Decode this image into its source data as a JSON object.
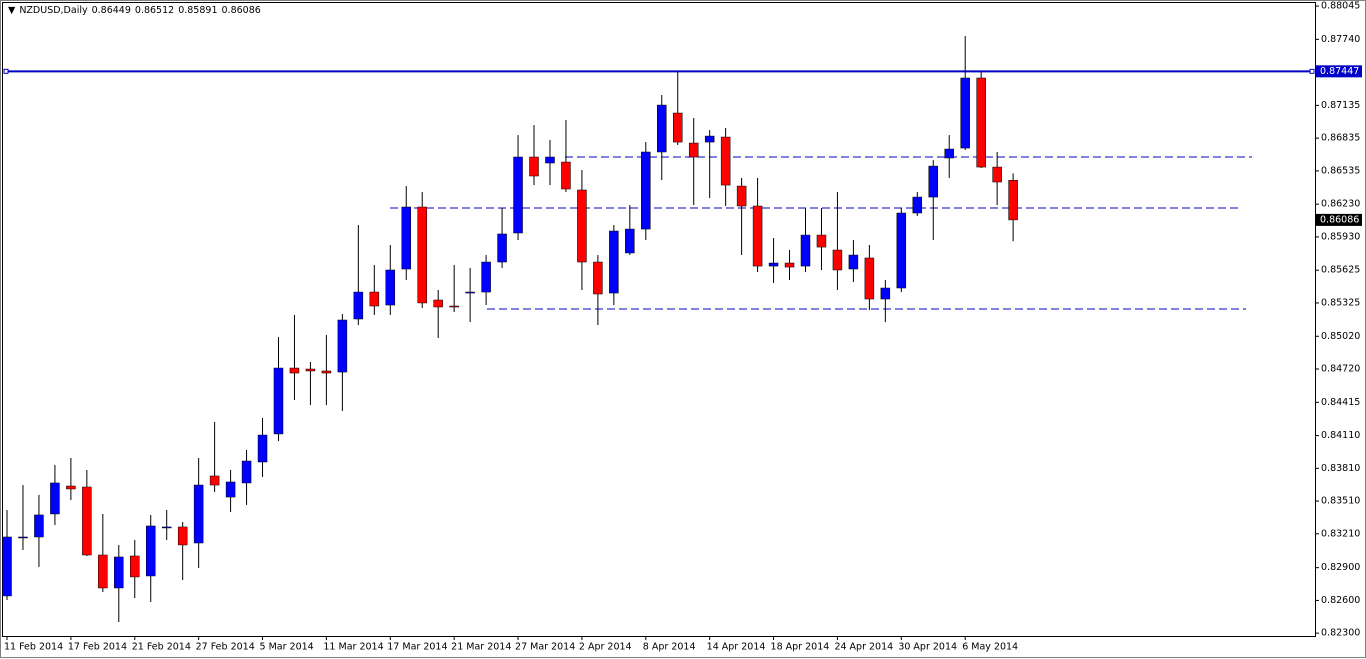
{
  "chart_data": {
    "type": "candlestick",
    "title": "NZDUSD,Daily",
    "header_values": [
      0.86449,
      0.86512,
      0.85891,
      0.86086
    ],
    "categories": [
      "11 Feb 2014",
      null,
      null,
      null,
      "17 Feb 2014",
      null,
      null,
      null,
      "21 Feb 2014",
      null,
      null,
      null,
      "27 Feb 2014",
      null,
      null,
      null,
      "5 Mar 2014",
      null,
      null,
      null,
      "11 Mar 2014",
      null,
      null,
      null,
      "17 Mar 2014",
      null,
      null,
      null,
      "21 Mar 2014",
      null,
      null,
      null,
      "27 Mar 2014",
      null,
      null,
      null,
      "2 Apr 2014",
      null,
      null,
      null,
      "8 Apr 2014",
      null,
      null,
      null,
      "14 Apr 2014",
      null,
      null,
      null,
      "18 Apr 2014",
      null,
      null,
      null,
      "24 Apr 2014",
      null,
      null,
      null,
      "30 Apr 2014",
      null,
      null,
      null,
      "6 May 2014",
      null,
      null,
      null
    ],
    "open": [
      0.82641,
      0.83181,
      0.83181,
      0.83392,
      0.83648,
      0.83639,
      0.83016,
      0.82714,
      0.83007,
      0.82824,
      0.83273,
      0.83273,
      0.83126,
      0.8374,
      0.83547,
      0.83676,
      0.83868,
      0.84125,
      0.84729,
      0.8472,
      0.84702,
      0.84692,
      0.85178,
      0.85425,
      0.85306,
      0.85636,
      0.86204,
      0.85352,
      0.85297,
      0.85416,
      0.85425,
      0.857,
      0.85966,
      0.86662,
      0.86607,
      0.86616,
      0.8636,
      0.857,
      0.85416,
      0.85783,
      0.86002,
      0.86708,
      0.87065,
      0.8679,
      0.86799,
      0.86845,
      0.86396,
      0.86213,
      0.85663,
      0.85691,
      0.85663,
      0.85947,
      0.8581,
      0.85636,
      0.85737,
      0.85361,
      0.85462,
      0.86149,
      0.86295,
      0.86653,
      0.86744,
      0.87386,
      0.8657,
      0.86449
    ],
    "high": [
      0.83428,
      0.83657,
      0.83566,
      0.83841,
      0.83905,
      0.83795,
      0.83392,
      0.83108,
      0.83154,
      0.83383,
      0.83428,
      0.83318,
      0.83905,
      0.84234,
      0.83795,
      0.83978,
      0.84271,
      0.85013,
      0.85215,
      0.84784,
      0.85031,
      0.85224,
      0.86039,
      0.85673,
      0.85856,
      0.86396,
      0.86341,
      0.85444,
      0.85673,
      0.85645,
      0.85764,
      0.86195,
      0.86863,
      0.86955,
      0.86818,
      0.87001,
      0.86543,
      0.85764,
      0.86039,
      0.86222,
      0.86799,
      0.8723,
      0.8744,
      0.87019,
      0.86909,
      0.86928,
      0.8647,
      0.8647,
      0.8592,
      0.8581,
      0.86195,
      0.86195,
      0.86341,
      0.85902,
      0.85856,
      0.85535,
      0.86195,
      0.86341,
      0.86634,
      0.86863,
      0.8777,
      0.8744,
      0.86708,
      0.86512
    ],
    "low": [
      0.82604,
      0.83062,
      0.82906,
      0.83291,
      0.8352,
      0.83007,
      0.82677,
      0.82402,
      0.82622,
      0.82586,
      0.83154,
      0.82787,
      0.82897,
      0.83593,
      0.8341,
      0.83474,
      0.83731,
      0.8406,
      0.84436,
      0.8439,
      0.8439,
      0.84335,
      0.85123,
      0.85215,
      0.85215,
      0.85535,
      0.85279,
      0.85004,
      0.85242,
      0.8515,
      0.85306,
      0.85645,
      0.85902,
      0.86405,
      0.86405,
      0.86341,
      0.85444,
      0.85123,
      0.85306,
      0.85764,
      0.85902,
      0.86451,
      0.86772,
      0.86222,
      0.86286,
      0.86213,
      0.85764,
      0.85608,
      0.85508,
      0.85535,
      0.85608,
      0.85627,
      0.85444,
      0.85517,
      0.8526,
      0.8515,
      0.85425,
      0.86121,
      0.85902,
      0.8647,
      0.86726,
      0.86561,
      0.86222,
      0.85891
    ],
    "close": [
      0.83181,
      0.83181,
      0.83383,
      0.83676,
      0.83621,
      0.83016,
      0.82714,
      0.82998,
      0.82815,
      0.83282,
      0.83273,
      0.83108,
      0.83657,
      0.83657,
      0.83685,
      0.83877,
      0.84115,
      0.84729,
      0.84683,
      0.84702,
      0.84683,
      0.85169,
      0.85425,
      0.85297,
      0.85627,
      0.86204,
      0.85325,
      0.85288,
      0.85288,
      0.85425,
      0.857,
      0.85957,
      0.86662,
      0.86488,
      0.86662,
      0.86369,
      0.857,
      0.85407,
      0.85984,
      0.86002,
      0.86708,
      0.87138,
      0.86799,
      0.86662,
      0.86854,
      0.86405,
      0.86213,
      0.85663,
      0.85691,
      0.85654,
      0.85947,
      0.85837,
      0.85627,
      0.85764,
      0.85361,
      0.85462,
      0.86149,
      0.86295,
      0.86579,
      0.86735,
      0.87386,
      0.8657,
      0.86433,
      0.86086
    ],
    "up_color": "#0000ff",
    "down_color": "#ff0000",
    "hlines": [
      {
        "value": 0.87447,
        "style": "solid",
        "color": "#0000c8",
        "label": "0.87447"
      },
      {
        "value": 0.86662,
        "style": "dashed",
        "color": "#0000c8"
      },
      {
        "value": 0.86195,
        "style": "dashed",
        "color": "#0000c8"
      },
      {
        "value": 0.8527,
        "style": "dashed",
        "color": "#0000c8"
      }
    ],
    "ylim": [
      0.82274,
      0.88073
    ],
    "yticks": [
      0.88045,
      {
        "value": 0.8774,
        "label": "0.87740"
      },
      0.87135,
      0.86835,
      0.86535,
      {
        "value": 0.8623,
        "label": "0.86230"
      },
      {
        "value": 0.8593,
        "label": "0.85930"
      },
      0.85625,
      0.85325,
      {
        "value": 0.8502,
        "label": "0.85020"
      },
      {
        "value": 0.8472,
        "label": "0.84720"
      },
      0.84415,
      {
        "value": 0.8411,
        "label": "0.84110"
      },
      {
        "value": 0.8381,
        "label": "0.83810"
      },
      {
        "value": 0.8351,
        "label": "0.83510"
      },
      {
        "value": 0.8321,
        "label": "0.83210"
      },
      {
        "value": 0.829,
        "label": "0.82900"
      },
      {
        "value": 0.826,
        "label": "0.82600"
      },
      {
        "value": 0.823,
        "label": "0.82300"
      }
    ],
    "grid": false
  }
}
